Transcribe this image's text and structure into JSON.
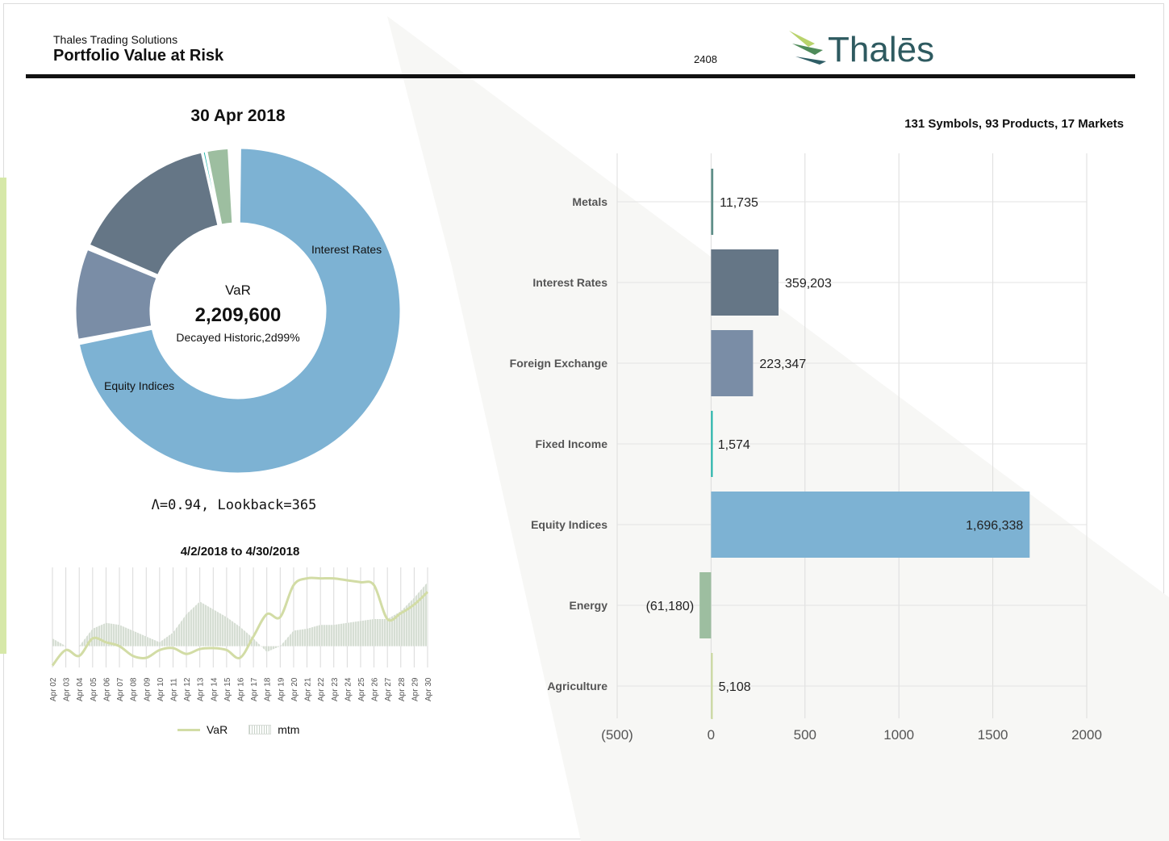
{
  "header": {
    "company": "Thales Trading Solutions",
    "title": "Portfolio Value at Risk",
    "code": "2408",
    "logo_text": "Thalēs"
  },
  "colors": {
    "accent": "#d6e8a8",
    "metals": "#5f8f89",
    "interest_rates": "#657686",
    "foreign_exchange": "#7a8da6",
    "fixed_income": "#19b2a8",
    "equity_indices": "#7db2d3",
    "energy": "#9dbea0",
    "agriculture": "#c9d89a"
  },
  "summary_left": {
    "date": "30 Apr 2018",
    "var_label": "VaR",
    "var_value": "2,209,600",
    "method": "Decayed Historic,2d99%",
    "params": "Λ=0.94, Lookback=365"
  },
  "summary_right": "131 Symbols, 93 Products, 17 Markets",
  "chart_data": [
    {
      "type": "pie",
      "subtype": "donut",
      "title": "30 Apr 2018",
      "categories": [
        "Equity Indices",
        "Foreign Exchange",
        "Interest Rates",
        "Fixed Income",
        "Energy",
        "Agriculture",
        "Metals"
      ],
      "values": [
        1696338,
        223347,
        359203,
        1574,
        61180,
        5108,
        11735
      ],
      "visible_slice_labels": [
        "Interest Rates",
        "Equity Indices"
      ]
    },
    {
      "type": "line",
      "title": "4/2/2018 to 4/30/2018",
      "categories": [
        "Apr 02",
        "Apr 03",
        "Apr 04",
        "Apr 05",
        "Apr 06",
        "Apr 07",
        "Apr 08",
        "Apr 09",
        "Apr 10",
        "Apr 11",
        "Apr 12",
        "Apr 13",
        "Apr 14",
        "Apr 15",
        "Apr 16",
        "Apr 17",
        "Apr 18",
        "Apr 19",
        "Apr 20",
        "Apr 21",
        "Apr 22",
        "Apr 23",
        "Apr 24",
        "Apr 25",
        "Apr 26",
        "Apr 27",
        "Apr 28",
        "Apr 29",
        "Apr 30"
      ],
      "series": [
        {
          "name": "VaR",
          "kind": "line",
          "values": [
            0.02,
            0.18,
            0.12,
            0.3,
            0.26,
            0.22,
            0.12,
            0.1,
            0.18,
            0.2,
            0.14,
            0.19,
            0.2,
            0.18,
            0.1,
            0.32,
            0.55,
            0.52,
            0.85,
            0.92,
            0.92,
            0.92,
            0.9,
            0.88,
            0.85,
            0.5,
            0.56,
            0.65,
            0.78
          ]
        },
        {
          "name": "mtm",
          "kind": "area",
          "values": [
            0.3,
            0.22,
            0.22,
            0.4,
            0.46,
            0.44,
            0.38,
            0.32,
            0.26,
            0.36,
            0.55,
            0.68,
            0.6,
            0.52,
            0.42,
            0.3,
            0.16,
            0.22,
            0.38,
            0.4,
            0.44,
            0.44,
            0.46,
            0.48,
            0.5,
            0.5,
            0.58,
            0.72,
            0.88
          ]
        }
      ],
      "legend": [
        "VaR",
        "mtm"
      ],
      "legend_position": "bottom"
    },
    {
      "type": "bar",
      "orientation": "horizontal",
      "title": "131 Symbols, 93 Products, 17 Markets",
      "categories": [
        "Metals",
        "Interest Rates",
        "Foreign Exchange",
        "Fixed Income",
        "Equity Indices",
        "Energy",
        "Agriculture"
      ],
      "values": [
        11735,
        359203,
        223347,
        1574,
        1696338,
        -61180,
        5108
      ],
      "value_labels": [
        "11,735",
        "359,203",
        "223,347",
        "1,574",
        "1,696,338",
        "(61,180)",
        "5,108"
      ],
      "xlim": [
        -500,
        2000
      ],
      "x_ticks": [
        "(500)",
        "0",
        "500",
        "1000",
        "1500",
        "2000"
      ],
      "grid": true
    }
  ]
}
